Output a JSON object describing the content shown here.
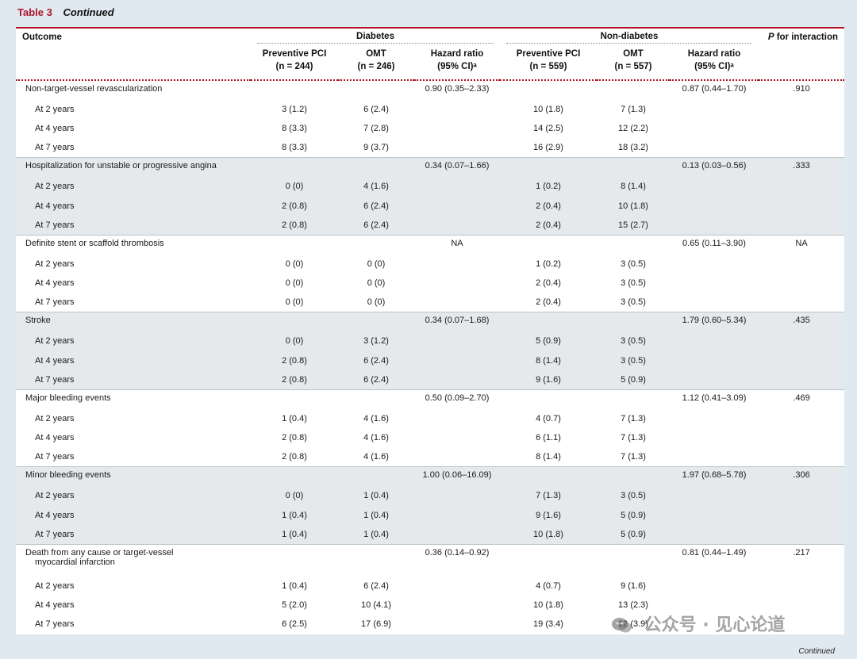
{
  "caption": {
    "number": "Table 3",
    "label": "Continued"
  },
  "header": {
    "outcome": "Outcome",
    "diabetes": "Diabetes",
    "non_diabetes": "Non-diabetes",
    "p_interaction": "P for interaction",
    "cols": {
      "d_pci": [
        "Preventive PCI",
        "(n = 244)"
      ],
      "d_omt": [
        "OMT",
        "(n = 246)"
      ],
      "d_hr": [
        "Hazard ratio",
        "(95% CI)ᵃ"
      ],
      "n_pci": [
        "Preventive PCI",
        "(n = 559)"
      ],
      "n_omt": [
        "OMT",
        "(n = 557)"
      ],
      "n_hr": [
        "Hazard ratio",
        "(95% CI)ᵃ"
      ]
    }
  },
  "groups": [
    {
      "title": [
        "Non-target-vessel revascularization"
      ],
      "d_hr": "0.90 (0.35–2.33)",
      "n_hr": "0.87 (0.44–1.70)",
      "p": ".910",
      "rows": [
        {
          "label": "At 2 years",
          "d_pci": "3 (1.2)",
          "d_omt": "6 (2.4)",
          "n_pci": "10 (1.8)",
          "n_omt": "7 (1.3)"
        },
        {
          "label": "At 4 years",
          "d_pci": "8 (3.3)",
          "d_omt": "7 (2.8)",
          "n_pci": "14 (2.5)",
          "n_omt": "12 (2.2)"
        },
        {
          "label": "At 7 years",
          "d_pci": "8 (3.3)",
          "d_omt": "9 (3.7)",
          "n_pci": "16 (2.9)",
          "n_omt": "18 (3.2)"
        }
      ]
    },
    {
      "title": [
        "Hospitalization for unstable or progressive angina"
      ],
      "d_hr": "0.34 (0.07–1.66)",
      "n_hr": "0.13 (0.03–0.56)",
      "p": ".333",
      "rows": [
        {
          "label": "At 2 years",
          "d_pci": "0 (0)",
          "d_omt": "4 (1.6)",
          "n_pci": "1 (0.2)",
          "n_omt": "8 (1.4)"
        },
        {
          "label": "At 4 years",
          "d_pci": "2 (0.8)",
          "d_omt": "6 (2.4)",
          "n_pci": "2 (0.4)",
          "n_omt": "10 (1.8)"
        },
        {
          "label": "At 7 years",
          "d_pci": "2 (0.8)",
          "d_omt": "6 (2.4)",
          "n_pci": "2 (0.4)",
          "n_omt": "15 (2.7)"
        }
      ]
    },
    {
      "title": [
        "Definite stent or scaffold thrombosis"
      ],
      "d_hr": "NA",
      "n_hr": "0.65 (0.11–3.90)",
      "p": "NA",
      "rows": [
        {
          "label": "At 2 years",
          "d_pci": "0 (0)",
          "d_omt": "0 (0)",
          "n_pci": "1 (0.2)",
          "n_omt": "3 (0.5)"
        },
        {
          "label": "At 4 years",
          "d_pci": "0 (0)",
          "d_omt": "0 (0)",
          "n_pci": "2 (0.4)",
          "n_omt": "3 (0.5)"
        },
        {
          "label": "At 7 years",
          "d_pci": "0 (0)",
          "d_omt": "0 (0)",
          "n_pci": "2 (0.4)",
          "n_omt": "3 (0.5)"
        }
      ]
    },
    {
      "title": [
        "Stroke"
      ],
      "d_hr": "0.34 (0.07–1.68)",
      "n_hr": "1.79 (0.60–5.34)",
      "p": ".435",
      "rows": [
        {
          "label": "At 2 years",
          "d_pci": "0 (0)",
          "d_omt": "3 (1.2)",
          "n_pci": "5 (0.9)",
          "n_omt": "3 (0.5)"
        },
        {
          "label": "At 4 years",
          "d_pci": "2 (0.8)",
          "d_omt": "6 (2.4)",
          "n_pci": "8 (1.4)",
          "n_omt": "3 (0.5)"
        },
        {
          "label": "At 7 years",
          "d_pci": "2 (0.8)",
          "d_omt": "6 (2.4)",
          "n_pci": "9 (1.6)",
          "n_omt": "5 (0.9)"
        }
      ]
    },
    {
      "title": [
        "Major bleeding events"
      ],
      "d_hr": "0.50 (0.09–2.70)",
      "n_hr": "1.12 (0.41–3.09)",
      "p": ".469",
      "rows": [
        {
          "label": "At 2 years",
          "d_pci": "1 (0.4)",
          "d_omt": "4 (1.6)",
          "n_pci": "4 (0.7)",
          "n_omt": "7 (1.3)"
        },
        {
          "label": "At 4 years",
          "d_pci": "2 (0.8)",
          "d_omt": "4 (1.6)",
          "n_pci": "6 (1.1)",
          "n_omt": "7 (1.3)"
        },
        {
          "label": "At 7 years",
          "d_pci": "2 (0.8)",
          "d_omt": "4 (1.6)",
          "n_pci": "8 (1.4)",
          "n_omt": "7 (1.3)"
        }
      ]
    },
    {
      "title": [
        "Minor bleeding events"
      ],
      "d_hr": "1.00 (0.06–16.09)",
      "n_hr": "1.97 (0.68–5.78)",
      "p": ".306",
      "rows": [
        {
          "label": "At 2 years",
          "d_pci": "0 (0)",
          "d_omt": "1 (0.4)",
          "n_pci": "7 (1.3)",
          "n_omt": "3 (0.5)"
        },
        {
          "label": "At 4 years",
          "d_pci": "1 (0.4)",
          "d_omt": "1 (0.4)",
          "n_pci": "9 (1.6)",
          "n_omt": "5 (0.9)"
        },
        {
          "label": "At 7 years",
          "d_pci": "1 (0.4)",
          "d_omt": "1 (0.4)",
          "n_pci": "10 (1.8)",
          "n_omt": "5 (0.9)"
        }
      ]
    },
    {
      "title": [
        "Death from any cause or target-vessel",
        "myocardial infarction"
      ],
      "d_hr": "0.36 (0.14–0.92)",
      "n_hr": "0.81 (0.44–1.49)",
      "p": ".217",
      "rows": [
        {
          "label": "At 2 years",
          "d_pci": "1 (0.4)",
          "d_omt": "6 (2.4)",
          "n_pci": "4 (0.7)",
          "n_omt": "9 (1.6)"
        },
        {
          "label": "At 4 years",
          "d_pci": "5 (2.0)",
          "d_omt": "10 (4.1)",
          "n_pci": "10 (1.8)",
          "n_omt": "13 (2.3)"
        },
        {
          "label": "At 7 years",
          "d_pci": "6 (2.5)",
          "d_omt": "17 (6.9)",
          "n_pci": "19 (3.4)",
          "n_omt": "22 (3.9)"
        }
      ]
    }
  ],
  "footer": {
    "continued": "Continued"
  },
  "watermark": {
    "text": "公众号 · 见心论道",
    "icon": "wechat-icon"
  }
}
